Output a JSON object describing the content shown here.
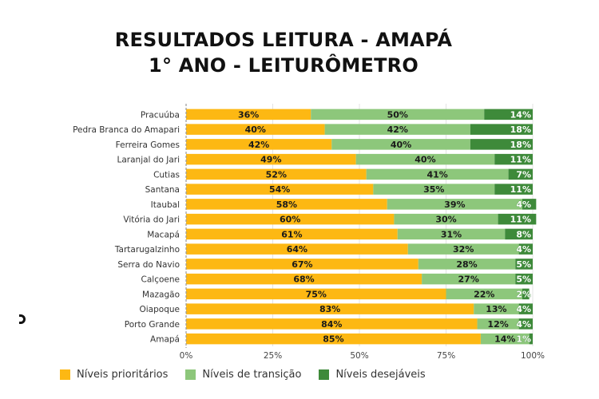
{
  "title": {
    "line1": "RESULTADOS LEITURA - AMAPÁ",
    "line2": "1° ANO - LEITURÔMETRO"
  },
  "colors": {
    "prioritarios": "#FDB813",
    "transicao": "#8DC77B",
    "desejaveis": "#3E8A3A"
  },
  "chart_data": {
    "type": "bar",
    "orientation": "horizontal",
    "stacked": true,
    "title": "RESULTADOS LEITURA - AMAPÁ 1° ANO - LEITURÔMETRO",
    "xlabel": "",
    "ylabel": "",
    "xlim": [
      0,
      100
    ],
    "xticks": [
      "0%",
      "25%",
      "50%",
      "75%",
      "100%"
    ],
    "grid": true,
    "legend_position": "bottom",
    "categories": [
      "Pracuúba",
      "Pedra Branca do Amapari",
      "Ferreira Gomes",
      "Laranjal do Jari",
      "Cutias",
      "Santana",
      "Itaubal",
      "Vitória do Jari",
      "Macapá",
      "Tartarugalzinho",
      "Serra do Navio",
      "Calçoene",
      "Mazagão",
      "Oiapoque",
      "Porto Grande",
      "Amapá"
    ],
    "series": [
      {
        "name": "Níveis prioritários",
        "values": [
          36,
          40,
          42,
          49,
          52,
          54,
          58,
          60,
          61,
          64,
          67,
          68,
          75,
          83,
          84,
          85
        ]
      },
      {
        "name": "Níveis de transição",
        "values": [
          50,
          42,
          40,
          40,
          41,
          35,
          39,
          30,
          31,
          32,
          28,
          27,
          22,
          13,
          12,
          14
        ]
      },
      {
        "name": "Níveis desejáveis",
        "values": [
          14,
          18,
          18,
          11,
          7,
          11,
          4,
          11,
          8,
          4,
          5,
          5,
          2,
          4,
          4,
          1
        ]
      }
    ]
  },
  "legend": [
    {
      "label": "Níveis prioritários"
    },
    {
      "label": "Níveis de transição"
    },
    {
      "label": "Níveis desejáveis"
    }
  ]
}
